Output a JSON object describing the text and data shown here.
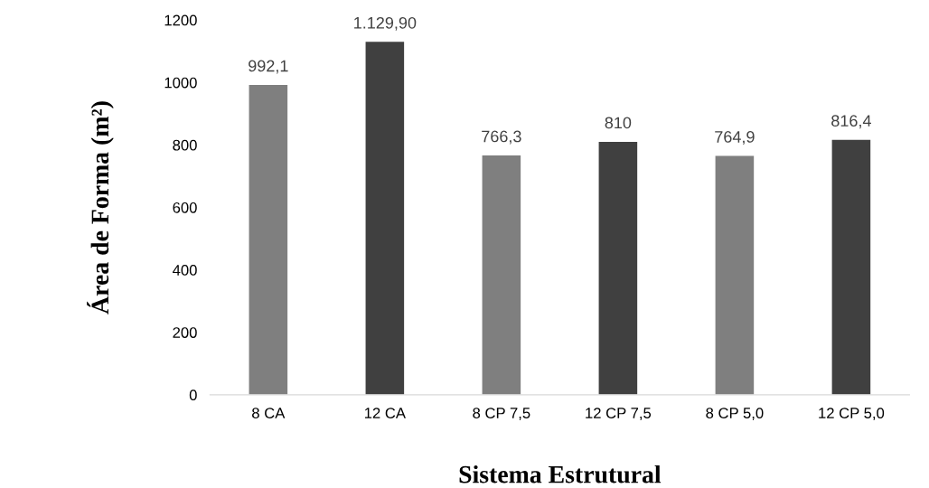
{
  "chart_data": {
    "type": "bar",
    "xlabel": "Sistema Estrutural",
    "ylabel": "Área de Forma (m²)",
    "categories": [
      "8 CA",
      "12 CA",
      "8 CP 7,5",
      "12 CP 7,5",
      "8 CP 5,0",
      "12 CP 5,0"
    ],
    "values": [
      992.1,
      1129.9,
      766.3,
      810,
      764.9,
      816.4
    ],
    "colors": [
      "#7f7f7f",
      "#404040",
      "#7f7f7f",
      "#404040",
      "#7f7f7f",
      "#404040"
    ],
    "value_labels": [
      "992,1",
      "1.129,90",
      "766,3",
      "810",
      "764,9",
      "816,4"
    ],
    "ylim": [
      0,
      1200
    ],
    "yticks": [
      0,
      200,
      400,
      600,
      800,
      1000,
      1200
    ],
    "grid": false,
    "legend": false
  }
}
